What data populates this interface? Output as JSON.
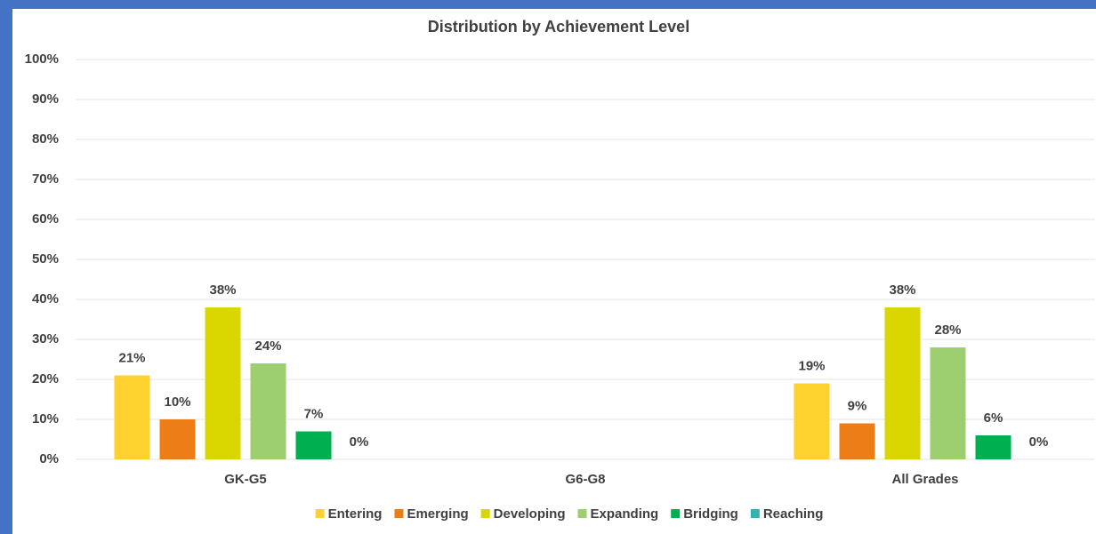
{
  "chart_data": {
    "type": "bar",
    "title": "Distribution by Achievement Level",
    "categories": [
      "GK-G5",
      "G6-G8",
      "All Grades"
    ],
    "series": [
      {
        "name": "Entering",
        "color": "#fdd12e",
        "values": [
          21,
          null,
          19
        ],
        "value_labels": [
          "21%",
          null,
          "19%"
        ]
      },
      {
        "name": "Emerging",
        "color": "#ed7d16",
        "values": [
          10,
          null,
          9
        ],
        "value_labels": [
          "10%",
          null,
          "9%"
        ]
      },
      {
        "name": "Developing",
        "color": "#d9d600",
        "values": [
          38,
          null,
          38
        ],
        "value_labels": [
          "38%",
          null,
          "38%"
        ]
      },
      {
        "name": "Expanding",
        "color": "#9dce6f",
        "values": [
          24,
          null,
          28
        ],
        "value_labels": [
          "24%",
          null,
          "28%"
        ]
      },
      {
        "name": "Bridging",
        "color": "#00b050",
        "values": [
          7,
          null,
          6
        ],
        "value_labels": [
          "7%",
          null,
          "6%"
        ]
      },
      {
        "name": "Reaching",
        "color": "#31b3b3",
        "values": [
          0,
          null,
          0
        ],
        "value_labels": [
          "0%",
          null,
          "0%"
        ]
      }
    ],
    "ylim": [
      0,
      100
    ],
    "yticks": [
      {
        "value": 0,
        "label": "0%"
      },
      {
        "value": 10,
        "label": "10%"
      },
      {
        "value": 20,
        "label": "20%"
      },
      {
        "value": 30,
        "label": "30%"
      },
      {
        "value": 40,
        "label": "40%"
      },
      {
        "value": 50,
        "label": "50%"
      },
      {
        "value": 60,
        "label": "60%"
      },
      {
        "value": 70,
        "label": "70%"
      },
      {
        "value": 80,
        "label": "80%"
      },
      {
        "value": 90,
        "label": "90%"
      },
      {
        "value": 100,
        "label": "100%"
      }
    ],
    "grid": true,
    "legend": "bottom"
  }
}
